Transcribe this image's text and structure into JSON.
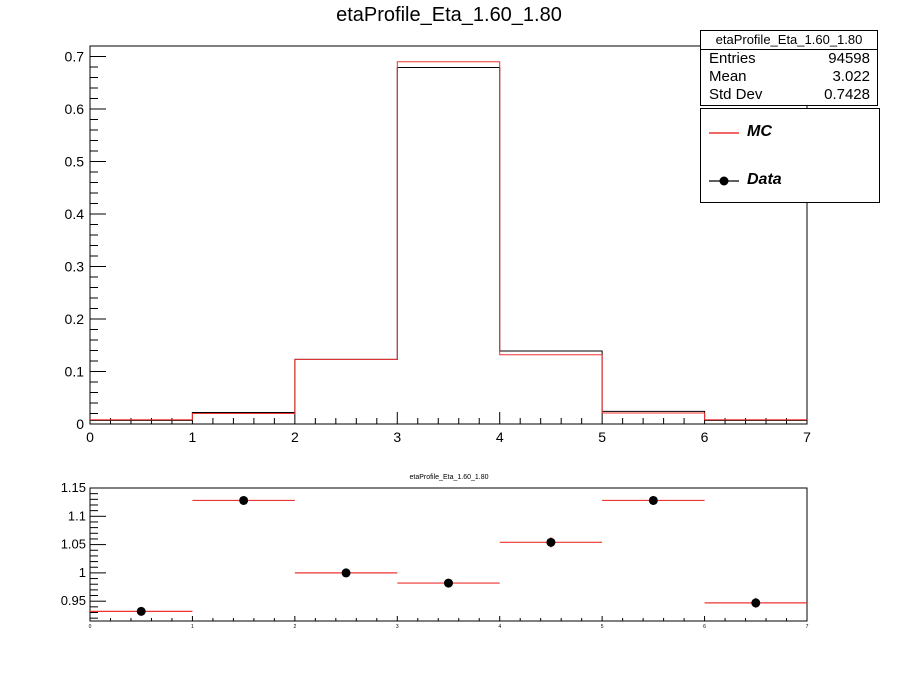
{
  "title": "etaProfile_Eta_1.60_1.80",
  "stats_box": {
    "title": "etaProfile_Eta_1.60_1.80",
    "rows": [
      {
        "label": "Entries",
        "value": "94598"
      },
      {
        "label": "Mean",
        "value": "3.022"
      },
      {
        "label": "Std Dev",
        "value": "0.7428"
      }
    ]
  },
  "legend": {
    "items": [
      {
        "label": "MC",
        "style": "line"
      },
      {
        "label": "Data",
        "style": "marker"
      }
    ]
  },
  "colors": {
    "mc": "#ee3333",
    "data": "#000000"
  },
  "chart_data": [
    {
      "type": "histogram",
      "title": "etaProfile_Eta_1.60_1.80",
      "bin_edges": [
        0,
        1,
        2,
        3,
        4,
        5,
        6,
        7
      ],
      "series": [
        {
          "name": "MC",
          "values": [
            0.008,
            0.02,
            0.123,
            0.69,
            0.132,
            0.021,
            0.008
          ]
        },
        {
          "name": "Data",
          "values": [
            0.007,
            0.022,
            0.123,
            0.679,
            0.139,
            0.024,
            0.007
          ]
        }
      ],
      "xlim": [
        0,
        7
      ],
      "ylim": [
        0,
        0.72
      ],
      "x_ticks": [
        "0",
        "1",
        "2",
        "3",
        "4",
        "5",
        "6",
        "7"
      ],
      "y_ticks": [
        "0",
        "0.1",
        "0.2",
        "0.3",
        "0.4",
        "0.5",
        "0.6",
        "0.7"
      ]
    },
    {
      "type": "scatter",
      "title": "etaProfile_Eta_1.60_1.80",
      "x": [
        0.5,
        1.5,
        2.5,
        3.5,
        4.5,
        5.5,
        6.5
      ],
      "x_err": 0.5,
      "values": [
        0.932,
        1.128,
        1.0,
        0.982,
        1.054,
        1.128,
        0.947
      ],
      "y_err": [
        0.007,
        0.007,
        0.008,
        0.006,
        0.009,
        0.008,
        0.009
      ],
      "xlim": [
        0,
        7
      ],
      "ylim": [
        0.915,
        1.15
      ],
      "x_ticks": [
        "0",
        "1",
        "2",
        "3",
        "4",
        "5",
        "6",
        "7"
      ],
      "y_ticks": [
        "0.95",
        "1",
        "1.05",
        "1.1",
        "1.15"
      ]
    }
  ]
}
